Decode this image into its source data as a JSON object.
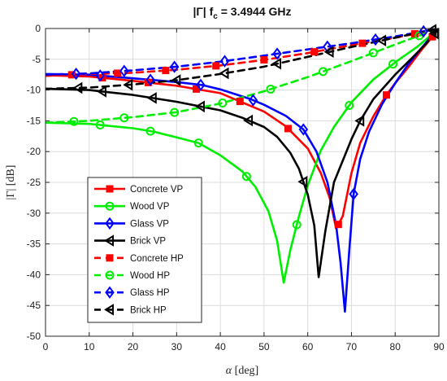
{
  "chart_data": {
    "type": "line",
    "title": "|Γ| f",
    "title_sub": "c",
    "title_value": " = 3.4944 GHz",
    "xlabel_symbol": "α",
    "xlabel_unit": " [deg]",
    "ylabel": "|Γ| [dB]",
    "xlim": [
      0,
      90
    ],
    "ylim": [
      -50,
      0
    ],
    "xticks": [
      0,
      10,
      20,
      30,
      40,
      50,
      60,
      70,
      80,
      90
    ],
    "yticks": [
      0,
      -5,
      -10,
      -15,
      -20,
      -25,
      -30,
      -35,
      -40,
      -45,
      -50
    ],
    "grid": true,
    "legend_position": "bottom-left",
    "series": [
      {
        "name": "Concrete VP",
        "color": "#ff0000",
        "style": "solid",
        "marker": "square",
        "points": [
          [
            0,
            -7.6
          ],
          [
            10,
            -7.8
          ],
          [
            20,
            -8.5
          ],
          [
            30,
            -9.3
          ],
          [
            40,
            -10.5
          ],
          [
            50,
            -13.5
          ],
          [
            55,
            -15.9
          ],
          [
            60,
            -19.5
          ],
          [
            63,
            -23.5
          ],
          [
            65,
            -27.5
          ],
          [
            66.5,
            -32.5
          ],
          [
            68,
            -30.5
          ],
          [
            70,
            -23.5
          ],
          [
            72,
            -18.6
          ],
          [
            75,
            -14.3
          ],
          [
            78,
            -10.8
          ],
          [
            80,
            -8.9
          ],
          [
            83,
            -6.3
          ],
          [
            86,
            -3.5
          ],
          [
            88,
            -1.8
          ],
          [
            89,
            -0.9
          ],
          [
            90,
            0
          ]
        ],
        "marker_x": [
          13,
          23.5,
          34.5,
          44.5,
          55.5,
          67,
          78,
          88.5
        ]
      },
      {
        "name": "Wood VP",
        "color": "#00ee00",
        "style": "solid",
        "marker": "circle",
        "points": [
          [
            0,
            -15.3
          ],
          [
            10,
            -15.5
          ],
          [
            20,
            -16.2
          ],
          [
            25,
            -16.8
          ],
          [
            30,
            -17.7
          ],
          [
            35,
            -18.6
          ],
          [
            40,
            -20.6
          ],
          [
            45,
            -23.2
          ],
          [
            48,
            -25.7
          ],
          [
            51,
            -29.7
          ],
          [
            53,
            -34.5
          ],
          [
            54.5,
            -41.3
          ],
          [
            56,
            -36
          ],
          [
            58,
            -30.5
          ],
          [
            60,
            -25.5
          ],
          [
            63,
            -19.8
          ],
          [
            66,
            -16
          ],
          [
            70,
            -12
          ],
          [
            75,
            -8.3
          ],
          [
            80,
            -5.5
          ],
          [
            85,
            -3
          ],
          [
            88,
            -1.2
          ],
          [
            90,
            0
          ]
        ],
        "marker_x": [
          12.5,
          24,
          35,
          46,
          57.5,
          69.5,
          79.5
        ]
      },
      {
        "name": "Glass VP",
        "color": "#0000ff",
        "style": "solid",
        "marker": "diamond",
        "points": [
          [
            0,
            -7.4
          ],
          [
            10,
            -7.5
          ],
          [
            20,
            -8.1
          ],
          [
            30,
            -8.7
          ],
          [
            36,
            -9.2
          ],
          [
            40,
            -9.9
          ],
          [
            47,
            -11.5
          ],
          [
            50,
            -12.4
          ],
          [
            55,
            -14.2
          ],
          [
            59,
            -16.4
          ],
          [
            62,
            -20
          ],
          [
            64.5,
            -25
          ],
          [
            66.5,
            -32
          ],
          [
            67.5,
            -38
          ],
          [
            68.5,
            -46
          ],
          [
            69.5,
            -36
          ],
          [
            70.5,
            -26.9
          ],
          [
            72,
            -21.2
          ],
          [
            74,
            -16.8
          ],
          [
            77,
            -12.3
          ],
          [
            80,
            -8.9
          ],
          [
            83,
            -5.8
          ],
          [
            86,
            -3.2
          ],
          [
            88,
            -1.5
          ],
          [
            90,
            0
          ]
        ],
        "marker_x": [
          12.5,
          24,
          35.5,
          47.5,
          59,
          70.5
        ]
      },
      {
        "name": "Brick VP",
        "color": "#000000",
        "style": "solid",
        "marker": "triangle-left",
        "points": [
          [
            0,
            -9.8
          ],
          [
            10,
            -10
          ],
          [
            20,
            -10.8
          ],
          [
            30,
            -11.9
          ],
          [
            35,
            -12.6
          ],
          [
            40,
            -13.3
          ],
          [
            45,
            -14.5
          ],
          [
            50,
            -16
          ],
          [
            53,
            -17.6
          ],
          [
            56,
            -20.2
          ],
          [
            58,
            -22.8
          ],
          [
            60,
            -27
          ],
          [
            61.5,
            -32
          ],
          [
            62.5,
            -40.4
          ],
          [
            64,
            -33
          ],
          [
            66,
            -25
          ],
          [
            70,
            -18
          ],
          [
            72,
            -15
          ],
          [
            75,
            -11.5
          ],
          [
            80,
            -7.5
          ],
          [
            84,
            -4.7
          ],
          [
            87,
            -2.5
          ],
          [
            89,
            -0.8
          ],
          [
            90,
            0
          ]
        ],
        "marker_x": [
          13,
          24.5,
          35.5,
          46.5,
          59,
          72,
          89
        ]
      },
      {
        "name": "Concrete HP",
        "color": "#ff0000",
        "style": "dashed",
        "marker": "square",
        "points": [
          [
            0,
            -7.7
          ],
          [
            10,
            -7.4
          ],
          [
            20,
            -7.2
          ],
          [
            30,
            -6.7
          ],
          [
            40,
            -6
          ],
          [
            50,
            -5.1
          ],
          [
            60,
            -4
          ],
          [
            70,
            -2.7
          ],
          [
            80,
            -1.5
          ],
          [
            85,
            -0.8
          ],
          [
            90,
            0
          ]
        ],
        "marker_x": [
          6,
          16.5,
          27.5,
          39,
          50,
          61.5,
          72.5,
          84.5
        ]
      },
      {
        "name": "Wood HP",
        "color": "#00ee00",
        "style": "dashed",
        "marker": "circle",
        "points": [
          [
            0,
            -15.3
          ],
          [
            10,
            -15
          ],
          [
            20,
            -14.4
          ],
          [
            30,
            -13.6
          ],
          [
            40,
            -12.2
          ],
          [
            50,
            -10.2
          ],
          [
            60,
            -7.9
          ],
          [
            70,
            -5.3
          ],
          [
            80,
            -2.6
          ],
          [
            85,
            -1.3
          ],
          [
            90,
            0
          ]
        ],
        "marker_x": [
          6.5,
          18,
          29.5,
          40.5,
          51.5,
          63.5,
          75,
          85.5
        ]
      },
      {
        "name": "Glass HP",
        "color": "#0000ff",
        "style": "dashed",
        "marker": "diamond",
        "points": [
          [
            0,
            -7.5
          ],
          [
            10,
            -7.3
          ],
          [
            20,
            -6.8
          ],
          [
            30,
            -6.2
          ],
          [
            40,
            -5.4
          ],
          [
            50,
            -4.4
          ],
          [
            60,
            -3.4
          ],
          [
            70,
            -2.4
          ],
          [
            80,
            -1.3
          ],
          [
            90,
            0
          ]
        ],
        "marker_x": [
          7,
          18,
          29.5,
          41,
          53,
          64.5,
          75.5,
          86.5
        ]
      },
      {
        "name": "Brick HP",
        "color": "#000000",
        "style": "dashed",
        "marker": "triangle-left",
        "points": [
          [
            0,
            -9.8
          ],
          [
            10,
            -9.6
          ],
          [
            20,
            -9.1
          ],
          [
            30,
            -8.4
          ],
          [
            40,
            -7.4
          ],
          [
            50,
            -6.2
          ],
          [
            60,
            -4.6
          ],
          [
            70,
            -3
          ],
          [
            80,
            -1.5
          ],
          [
            90,
            0
          ]
        ],
        "marker_x": [
          7.5,
          19,
          30,
          41,
          53,
          65,
          77,
          88.5
        ]
      }
    ]
  }
}
